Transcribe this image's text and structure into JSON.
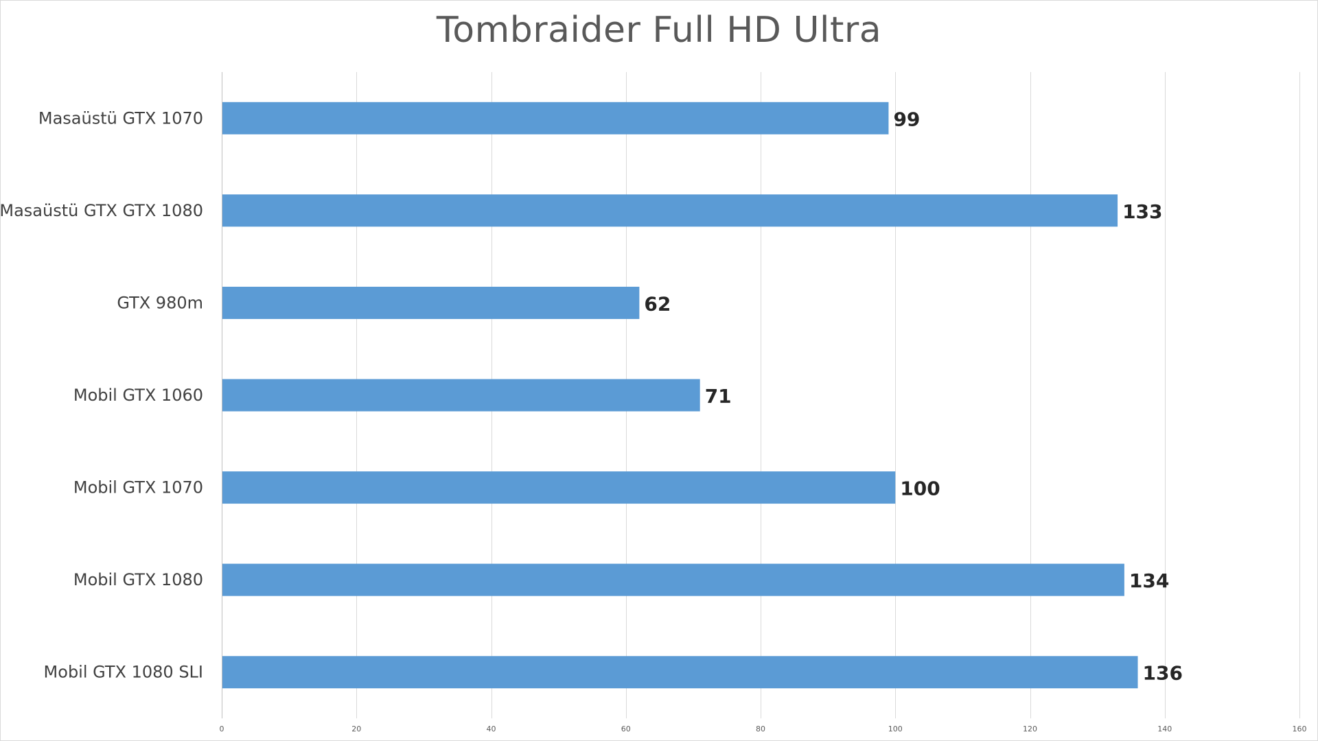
{
  "chart_data": {
    "type": "bar",
    "orientation": "horizontal",
    "title": "Tombraider Full HD Ultra",
    "xlabel": "",
    "ylabel": "",
    "categories": [
      "Masaüstü GTX 1070",
      "Masaüstü GTX GTX 1080",
      "GTX 980m",
      "Mobil GTX 1060",
      "Mobil GTX 1070",
      "Mobil GTX 1080",
      "Mobil GTX 1080 SLI"
    ],
    "values": [
      99,
      133,
      62,
      71,
      100,
      134,
      136
    ],
    "xlim": [
      0,
      160
    ],
    "x_ticks": [
      0,
      20,
      40,
      60,
      80,
      100,
      120,
      140,
      160
    ],
    "grid": true,
    "legend": "none",
    "bar_color": "#5b9bd5",
    "data_labels": true
  }
}
